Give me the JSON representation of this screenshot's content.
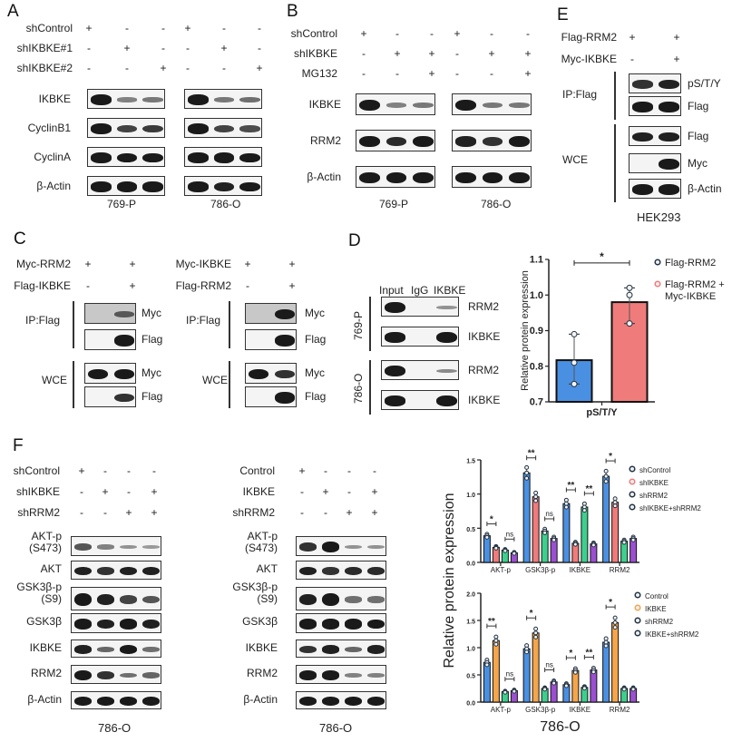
{
  "panels": {
    "A": {
      "letter": "A",
      "conditions": [
        {
          "label": "shControl",
          "signs": [
            "+",
            "-",
            "-",
            "+",
            "-",
            "-"
          ]
        },
        {
          "label": "shIKBKE#1",
          "signs": [
            "-",
            "+",
            "-",
            "-",
            "+",
            "-"
          ]
        },
        {
          "label": "shIKBKE#2",
          "signs": [
            "-",
            "-",
            "+",
            "-",
            "-",
            "+"
          ]
        }
      ],
      "rows": [
        "IKBKE",
        "CyclinB1",
        "CyclinA",
        "β-Actin"
      ],
      "cell_lines": [
        "769-P",
        "786-O"
      ]
    },
    "B": {
      "letter": "B",
      "conditions": [
        {
          "label": "shControl",
          "signs": [
            "+",
            "-",
            "-",
            "+",
            "-",
            "-"
          ]
        },
        {
          "label": "shIKBKE",
          "signs": [
            "-",
            "+",
            "+",
            "-",
            "+",
            "+"
          ]
        },
        {
          "label": "MG132",
          "signs": [
            "-",
            "-",
            "+",
            "-",
            "-",
            "+"
          ]
        }
      ],
      "rows": [
        "IKBKE",
        "RRM2",
        "β-Actin"
      ],
      "cell_lines": [
        "769-P",
        "786-O"
      ]
    },
    "C": {
      "letter": "C",
      "left": {
        "conditions": [
          {
            "label": "Myc-RRM2",
            "signs": [
              "+",
              "+"
            ]
          },
          {
            "label": "Flag-IKBKE",
            "signs": [
              "-",
              "+"
            ]
          }
        ],
        "groups": [
          {
            "label": "IP:Flag",
            "rows": [
              "Myc",
              "Flag"
            ]
          },
          {
            "label": "WCE",
            "rows": [
              "Myc",
              "Flag"
            ]
          }
        ]
      },
      "right": {
        "conditions": [
          {
            "label": "Myc-IKBKE",
            "signs": [
              "+",
              "+"
            ]
          },
          {
            "label": "Flag-RRM2",
            "signs": [
              "-",
              "+"
            ]
          }
        ],
        "groups": [
          {
            "label": "IP:Flag",
            "rows": [
              "Myc",
              "Flag"
            ]
          },
          {
            "label": "WCE",
            "rows": [
              "Myc",
              "Flag"
            ]
          }
        ]
      }
    },
    "D": {
      "letter": "D",
      "columns": [
        "Input",
        "IgG",
        "IKBKE"
      ],
      "groups": [
        {
          "label": "769-P",
          "rows": [
            "RRM2",
            "IKBKE"
          ]
        },
        {
          "label": "786-O",
          "rows": [
            "RRM2",
            "IKBKE"
          ]
        }
      ]
    },
    "E": {
      "letter": "E",
      "conditions": [
        {
          "label": "Flag-RRM2",
          "signs": [
            "+",
            "+"
          ]
        },
        {
          "label": "Myc-IKBKE",
          "signs": [
            "-",
            "+"
          ]
        }
      ],
      "groups": [
        {
          "label": "IP:Flag",
          "rows": [
            "pS/T/Y",
            "Flag"
          ]
        },
        {
          "label": "WCE",
          "rows": [
            "Flag",
            "Myc",
            "β-Actin"
          ]
        }
      ],
      "cell_line": "HEK293"
    },
    "F": {
      "letter": "F",
      "left": {
        "conditions": [
          {
            "label": "shControl",
            "signs": [
              "+",
              "-",
              "-",
              "-"
            ]
          },
          {
            "label": "shIKBKE",
            "signs": [
              "-",
              "+",
              "-",
              "+"
            ]
          },
          {
            "label": "shRRM2",
            "signs": [
              "-",
              "-",
              "+",
              "+"
            ]
          }
        ],
        "rows": [
          "AKT-p\n(S473)",
          "AKT",
          "GSK3β-p\n(S9)",
          "GSK3β",
          "IKBKE",
          "RRM2",
          "β-Actin"
        ],
        "cell_line": "786-O"
      },
      "middle": {
        "conditions": [
          {
            "label": "Control",
            "signs": [
              "+",
              "-",
              "-",
              "-"
            ]
          },
          {
            "label": "IKBKE",
            "signs": [
              "-",
              "+",
              "-",
              "+"
            ]
          },
          {
            "label": "shRRM2",
            "signs": [
              "-",
              "-",
              "+",
              "+"
            ]
          }
        ],
        "rows": [
          "AKT-p\n(S473)",
          "AKT",
          "GSK3β-p\n(S9)",
          "GSK3β",
          "IKBKE",
          "RRM2",
          "β-Actin"
        ],
        "cell_line": "786-O"
      },
      "shared_ylabel": "Relative protein expression",
      "chart_xlabel": "786-O"
    }
  },
  "chart_data": [
    {
      "type": "bar",
      "panel": "D",
      "categories": [
        "pS/T/Y"
      ],
      "series": [
        {
          "name": "Flag-RRM2",
          "color": "#4a90e2",
          "values": [
            0.817
          ],
          "points": [
            0.89,
            0.81,
            0.75
          ]
        },
        {
          "name": "Flag-RRM2 + Myc-IKBKE",
          "color": "#f07b7b",
          "values": [
            0.98
          ],
          "points": [
            1.02,
            1.0,
            0.92
          ]
        }
      ],
      "ylabel": "Relative protein expression",
      "yticks": [
        0.7,
        0.8,
        0.9,
        1.0,
        1.1
      ],
      "ylim": [
        0.7,
        1.1
      ],
      "annotations": [
        {
          "text": "*",
          "between": [
            "Flag-RRM2",
            "Flag-RRM2 + Myc-IKBKE"
          ]
        }
      ],
      "legend_position": "right"
    },
    {
      "type": "bar",
      "panel": "F-top",
      "categories": [
        "AKT-p",
        "GSK3β-p",
        "IKBKE",
        "RRM2"
      ],
      "series": [
        {
          "name": "shControl",
          "color": "#4a90e2",
          "values": [
            0.39,
            1.31,
            0.86,
            1.26
          ]
        },
        {
          "name": "shIKBKE",
          "color": "#f07b7b",
          "values": [
            0.22,
            0.96,
            0.28,
            0.88
          ]
        },
        {
          "name": "shRRM2",
          "color": "#3ecf8e",
          "values": [
            0.18,
            0.46,
            0.81,
            0.31
          ]
        },
        {
          "name": "shIKBKE+shRRM2",
          "color": "#9b4fd1",
          "values": [
            0.14,
            0.35,
            0.27,
            0.35
          ]
        }
      ],
      "ylabel": "Relative protein expression",
      "yticks": [
        0.0,
        0.5,
        1.0,
        1.5
      ],
      "ylim": [
        0,
        1.5
      ],
      "annotations": [
        {
          "category": "AKT-p",
          "text": "*"
        },
        {
          "category": "AKT-p",
          "text": "ns"
        },
        {
          "category": "GSK3β-p",
          "text": "**"
        },
        {
          "category": "GSK3β-p",
          "text": "ns"
        },
        {
          "category": "IKBKE",
          "text": "**"
        },
        {
          "category": "IKBKE",
          "text": "**"
        },
        {
          "category": "RRM2",
          "text": "*"
        }
      ],
      "legend_position": "right"
    },
    {
      "type": "bar",
      "panel": "F-bottom",
      "categories": [
        "AKT-p",
        "GSK3β-p",
        "IKBKE",
        "RRM2"
      ],
      "series": [
        {
          "name": "Control",
          "color": "#4a90e2",
          "values": [
            0.73,
            0.98,
            0.32,
            1.1
          ]
        },
        {
          "name": "IKBKE",
          "color": "#f5a54a",
          "values": [
            1.13,
            1.27,
            0.58,
            1.46
          ]
        },
        {
          "name": "shRRM2",
          "color": "#3ecf8e",
          "values": [
            0.19,
            0.25,
            0.27,
            0.25
          ]
        },
        {
          "name": "IKBKE+shRRM2",
          "color": "#9b4fd1",
          "values": [
            0.21,
            0.37,
            0.59,
            0.25
          ]
        }
      ],
      "ylabel": "Relative protein expression",
      "xlabel": "786-O",
      "yticks": [
        0.0,
        0.5,
        1.0,
        1.5,
        2.0
      ],
      "ylim": [
        0,
        2.0
      ],
      "annotations": [
        {
          "category": "AKT-p",
          "text": "**"
        },
        {
          "category": "AKT-p",
          "text": "ns"
        },
        {
          "category": "GSK3β-p",
          "text": "*"
        },
        {
          "category": "GSK3β-p",
          "text": "ns"
        },
        {
          "category": "IKBKE",
          "text": "*"
        },
        {
          "category": "IKBKE",
          "text": "**"
        },
        {
          "category": "RRM2",
          "text": "*"
        }
      ],
      "legend_position": "right"
    }
  ]
}
